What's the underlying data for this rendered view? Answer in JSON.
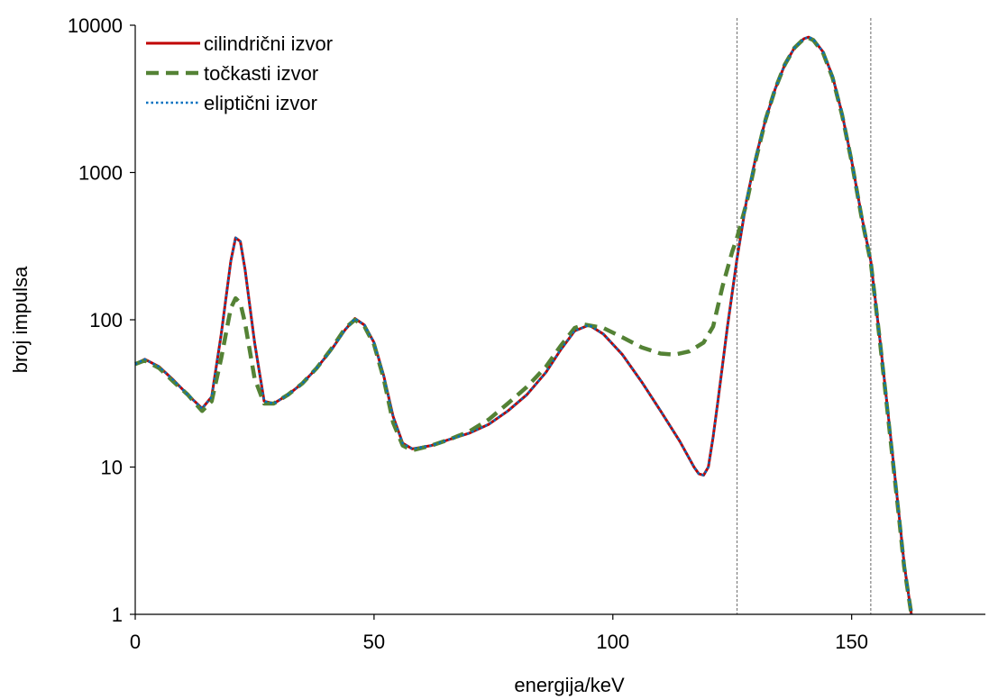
{
  "chart_data": {
    "type": "line",
    "title": "",
    "xlabel": "energija/keV",
    "ylabel": "broj impulsa",
    "xlim": [
      0,
      178
    ],
    "ylim": [
      1,
      10000
    ],
    "y_scale": "log",
    "x_ticks": [
      0,
      50,
      100,
      150
    ],
    "x_tick_labels": [
      "0",
      "50",
      "100",
      "150"
    ],
    "y_ticks": [
      1,
      10,
      100,
      1000,
      10000
    ],
    "y_tick_labels": [
      "1",
      "10",
      "100",
      "1000",
      "10000"
    ],
    "grid": false,
    "legend_position": "top-left",
    "reference_lines_x": [
      126,
      154
    ],
    "series": [
      {
        "name": "cilindrični izvor",
        "style": "solid",
        "color": "#c00000",
        "points": [
          [
            0,
            50
          ],
          [
            2,
            54
          ],
          [
            5,
            48
          ],
          [
            8,
            39
          ],
          [
            11,
            31
          ],
          [
            14,
            25
          ],
          [
            16,
            30
          ],
          [
            18,
            80
          ],
          [
            20,
            250
          ],
          [
            21,
            360
          ],
          [
            22,
            340
          ],
          [
            23,
            220
          ],
          [
            25,
            70
          ],
          [
            27,
            28
          ],
          [
            29,
            27
          ],
          [
            32,
            31
          ],
          [
            35,
            37
          ],
          [
            38,
            47
          ],
          [
            41,
            62
          ],
          [
            44,
            86
          ],
          [
            46,
            102
          ],
          [
            48,
            92
          ],
          [
            50,
            70
          ],
          [
            52,
            42
          ],
          [
            54,
            22
          ],
          [
            56,
            14.5
          ],
          [
            58,
            13.3
          ],
          [
            62,
            14
          ],
          [
            66,
            15.5
          ],
          [
            70,
            17
          ],
          [
            74,
            19.5
          ],
          [
            78,
            24
          ],
          [
            82,
            31
          ],
          [
            86,
            44
          ],
          [
            89,
            62
          ],
          [
            92,
            84
          ],
          [
            95,
            92
          ],
          [
            98,
            80
          ],
          [
            102,
            58
          ],
          [
            106,
            38
          ],
          [
            110,
            24
          ],
          [
            114,
            15
          ],
          [
            117,
            10
          ],
          [
            118,
            9
          ],
          [
            119,
            8.8
          ],
          [
            120,
            10
          ],
          [
            121,
            16
          ],
          [
            122,
            28
          ],
          [
            124,
            90
          ],
          [
            126,
            260
          ],
          [
            128,
            650
          ],
          [
            130,
            1300
          ],
          [
            132,
            2300
          ],
          [
            134,
            3700
          ],
          [
            136,
            5400
          ],
          [
            138,
            7000
          ],
          [
            140,
            8100
          ],
          [
            141,
            8300
          ],
          [
            142,
            8000
          ],
          [
            144,
            6600
          ],
          [
            146,
            4500
          ],
          [
            148,
            2500
          ],
          [
            150,
            1200
          ],
          [
            152,
            520
          ],
          [
            154,
            250
          ],
          [
            156,
            70
          ],
          [
            158,
            18
          ],
          [
            160,
            4.5
          ],
          [
            161,
            2.2
          ],
          [
            162.5,
            1
          ]
        ]
      },
      {
        "name": "točkasti izvor",
        "style": "dashed",
        "color": "#548235",
        "points": [
          [
            0,
            50
          ],
          [
            2,
            53
          ],
          [
            5,
            47
          ],
          [
            8,
            38
          ],
          [
            11,
            31
          ],
          [
            14,
            24
          ],
          [
            16,
            28
          ],
          [
            18,
            55
          ],
          [
            20,
            120
          ],
          [
            21,
            140
          ],
          [
            22,
            130
          ],
          [
            23,
            95
          ],
          [
            25,
            40
          ],
          [
            27,
            27
          ],
          [
            29,
            27
          ],
          [
            32,
            31
          ],
          [
            35,
            37
          ],
          [
            38,
            47
          ],
          [
            41,
            63
          ],
          [
            44,
            88
          ],
          [
            46,
            100
          ],
          [
            48,
            90
          ],
          [
            50,
            68
          ],
          [
            52,
            40
          ],
          [
            54,
            20
          ],
          [
            56,
            14
          ],
          [
            58,
            13
          ],
          [
            62,
            14
          ],
          [
            66,
            15.5
          ],
          [
            70,
            17.5
          ],
          [
            74,
            21
          ],
          [
            78,
            27
          ],
          [
            82,
            35
          ],
          [
            86,
            48
          ],
          [
            89,
            66
          ],
          [
            92,
            88
          ],
          [
            94,
            93
          ],
          [
            98,
            88
          ],
          [
            102,
            76
          ],
          [
            106,
            65
          ],
          [
            110,
            59
          ],
          [
            113,
            58
          ],
          [
            116,
            61
          ],
          [
            119,
            70
          ],
          [
            121,
            90
          ],
          [
            123,
            170
          ],
          [
            125,
            290
          ],
          [
            126,
            360
          ],
          [
            128,
            620
          ],
          [
            130,
            1250
          ],
          [
            132,
            2300
          ],
          [
            134,
            3700
          ],
          [
            136,
            5400
          ],
          [
            138,
            7000
          ],
          [
            140,
            8100
          ],
          [
            141,
            8200
          ],
          [
            142,
            7900
          ],
          [
            144,
            6500
          ],
          [
            146,
            4400
          ],
          [
            148,
            2450
          ],
          [
            150,
            1180
          ],
          [
            152,
            510
          ],
          [
            154,
            245
          ],
          [
            156,
            68
          ],
          [
            158,
            17
          ],
          [
            160,
            4.3
          ],
          [
            161,
            2.1
          ],
          [
            162.5,
            1
          ]
        ]
      },
      {
        "name": "eliptični izvor",
        "style": "dotted",
        "color": "#0070c0",
        "points": [
          [
            0,
            50
          ],
          [
            2,
            54
          ],
          [
            5,
            48
          ],
          [
            8,
            39
          ],
          [
            11,
            31
          ],
          [
            14,
            25
          ],
          [
            16,
            30
          ],
          [
            18,
            80
          ],
          [
            20,
            250
          ],
          [
            21,
            360
          ],
          [
            22,
            340
          ],
          [
            23,
            220
          ],
          [
            25,
            70
          ],
          [
            27,
            28
          ],
          [
            29,
            27
          ],
          [
            32,
            31
          ],
          [
            35,
            37
          ],
          [
            38,
            47
          ],
          [
            41,
            62
          ],
          [
            44,
            86
          ],
          [
            46,
            102
          ],
          [
            48,
            92
          ],
          [
            50,
            70
          ],
          [
            52,
            42
          ],
          [
            54,
            22
          ],
          [
            56,
            14.5
          ],
          [
            58,
            13.3
          ],
          [
            62,
            14
          ],
          [
            66,
            15.5
          ],
          [
            70,
            17
          ],
          [
            74,
            19.5
          ],
          [
            78,
            24
          ],
          [
            82,
            31
          ],
          [
            86,
            44
          ],
          [
            89,
            62
          ],
          [
            92,
            84
          ],
          [
            95,
            92
          ],
          [
            98,
            80
          ],
          [
            102,
            58
          ],
          [
            106,
            38
          ],
          [
            110,
            24
          ],
          [
            114,
            15
          ],
          [
            117,
            10
          ],
          [
            118,
            9
          ],
          [
            119,
            8.8
          ],
          [
            120,
            10
          ],
          [
            121,
            16
          ],
          [
            122,
            28
          ],
          [
            124,
            90
          ],
          [
            126,
            260
          ],
          [
            128,
            650
          ],
          [
            130,
            1300
          ],
          [
            132,
            2300
          ],
          [
            134,
            3700
          ],
          [
            136,
            5400
          ],
          [
            138,
            7000
          ],
          [
            140,
            8100
          ],
          [
            141,
            8300
          ],
          [
            142,
            8000
          ],
          [
            144,
            6600
          ],
          [
            146,
            4500
          ],
          [
            148,
            2500
          ],
          [
            150,
            1200
          ],
          [
            152,
            520
          ],
          [
            154,
            250
          ],
          [
            156,
            70
          ],
          [
            158,
            18
          ],
          [
            160,
            4.5
          ],
          [
            161,
            2.2
          ],
          [
            162.5,
            1
          ]
        ]
      }
    ]
  }
}
